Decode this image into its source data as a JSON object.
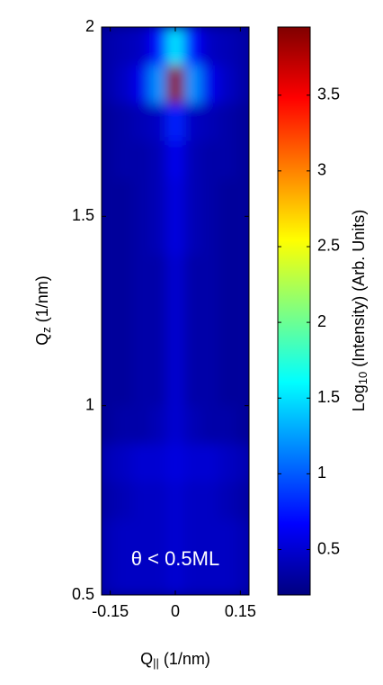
{
  "chart_data": {
    "type": "heatmap",
    "xlabel": [
      "Q",
      "||",
      " (1/nm)"
    ],
    "ylabel": [
      "Q",
      "z",
      " (1/nm)"
    ],
    "colorbar_label": [
      "Log",
      "10",
      " (Intensity) (Arb. Units)"
    ],
    "annotation": "θ < 0.5ML",
    "colormap": "jet",
    "x": [
      -0.16,
      -0.12,
      -0.08,
      -0.04,
      0,
      0.04,
      0.08,
      0.12,
      0.16
    ],
    "y": [
      0.55,
      0.65,
      0.75,
      0.85,
      0.95,
      1.05,
      1.15,
      1.25,
      1.35,
      1.45,
      1.55,
      1.65,
      1.75,
      1.85,
      1.95
    ],
    "z": [
      [
        0.4,
        0.45,
        0.45,
        0.45,
        0.5,
        0.45,
        0.45,
        0.45,
        0.4
      ],
      [
        0.4,
        0.45,
        0.45,
        0.45,
        0.5,
        0.45,
        0.45,
        0.45,
        0.4
      ],
      [
        0.35,
        0.4,
        0.45,
        0.45,
        0.5,
        0.45,
        0.45,
        0.4,
        0.35
      ],
      [
        0.4,
        0.45,
        0.5,
        0.5,
        0.55,
        0.5,
        0.5,
        0.45,
        0.4
      ],
      [
        0.3,
        0.35,
        0.35,
        0.4,
        0.5,
        0.4,
        0.35,
        0.35,
        0.3
      ],
      [
        0.3,
        0.3,
        0.35,
        0.35,
        0.5,
        0.35,
        0.35,
        0.3,
        0.3
      ],
      [
        0.3,
        0.3,
        0.35,
        0.35,
        0.5,
        0.35,
        0.35,
        0.3,
        0.3
      ],
      [
        0.3,
        0.3,
        0.35,
        0.35,
        0.5,
        0.35,
        0.35,
        0.3,
        0.3
      ],
      [
        0.3,
        0.3,
        0.35,
        0.35,
        0.5,
        0.35,
        0.35,
        0.3,
        0.3
      ],
      [
        0.3,
        0.3,
        0.35,
        0.4,
        0.55,
        0.4,
        0.35,
        0.3,
        0.3
      ],
      [
        0.3,
        0.3,
        0.35,
        0.4,
        0.55,
        0.4,
        0.35,
        0.3,
        0.3
      ],
      [
        0.3,
        0.35,
        0.35,
        0.4,
        0.6,
        0.4,
        0.35,
        0.35,
        0.3
      ],
      [
        0.3,
        0.35,
        0.4,
        0.45,
        0.8,
        0.45,
        0.4,
        0.35,
        0.3
      ],
      [
        0.35,
        0.45,
        0.6,
        1.2,
        3.9,
        1.2,
        0.6,
        0.45,
        0.35
      ],
      [
        0.35,
        0.4,
        0.45,
        0.7,
        1.5,
        0.7,
        0.45,
        0.4,
        0.35
      ]
    ],
    "xlim": [
      -0.17,
      0.17
    ],
    "xticks": [
      -0.15,
      0,
      0.15
    ],
    "ylim": [
      0.5,
      2
    ],
    "yticks": [
      0.5,
      1,
      1.5,
      2
    ],
    "clim": [
      0.2,
      3.95
    ],
    "cticks": [
      0.5,
      1,
      1.5,
      2,
      2.5,
      3,
      3.5
    ]
  }
}
